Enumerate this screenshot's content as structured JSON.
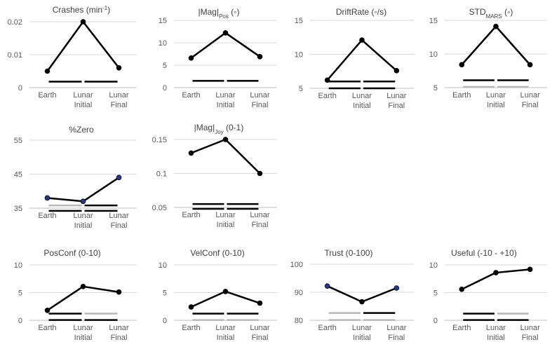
{
  "colors": {
    "series": "#000000",
    "grid": "#d9d9d9",
    "axis": "#bfbfbf",
    "bar_black": "#000000",
    "bar_gray": "#b7b7b7",
    "marker_blue": "#1f3a93"
  },
  "categories": [
    [
      "Earth"
    ],
    [
      "Lunar",
      "Initial"
    ],
    [
      "Lunar",
      "Final"
    ]
  ],
  "chart_data": [
    {
      "type": "line",
      "title": "Crashes (min",
      "title_sup": "-1",
      "title_suffix": ")",
      "ylim": [
        0,
        0.02
      ],
      "yticks": [
        "0",
        "0.01",
        "0.02"
      ],
      "ytick_values": [
        0,
        0.01,
        0.02
      ],
      "values": [
        0.005,
        0.02,
        0.006
      ],
      "bars": [
        {
          "y": 0.0018,
          "segments": [
            "black",
            "black"
          ]
        }
      ]
    },
    {
      "type": "line",
      "title": "|Mag|",
      "title_sub": "Pos",
      "title_suffix": " (◦)",
      "ylim": [
        0,
        15
      ],
      "yticks": [
        "0",
        "5",
        "10",
        "15"
      ],
      "ytick_values": [
        0,
        5,
        10,
        15
      ],
      "values": [
        6.6,
        12.2,
        6.9
      ],
      "bars": [
        {
          "y": 1.5,
          "segments": [
            "black",
            "black"
          ]
        }
      ]
    },
    {
      "type": "line",
      "title": "DriftRate (◦/s)",
      "title_sub": "",
      "title_suffix": "",
      "ylim": [
        5,
        15
      ],
      "yticks": [
        "5",
        "10",
        "15"
      ],
      "ytick_values": [
        5,
        10,
        15
      ],
      "values": [
        6.2,
        12.1,
        7.6
      ],
      "bars": [
        {
          "y": 6.0,
          "segments": [
            "black",
            "black"
          ]
        },
        {
          "y": 5.0,
          "segments": [
            "black",
            "black"
          ]
        }
      ]
    },
    {
      "type": "line",
      "title": "STD",
      "title_sub": "MARS",
      "title_suffix": " (◦)",
      "ylim": [
        5,
        15
      ],
      "yticks": [
        "5",
        "10",
        "15"
      ],
      "ytick_values": [
        5,
        10,
        15
      ],
      "values": [
        8.4,
        14.1,
        8.4
      ],
      "bars": [
        {
          "y": 6.1,
          "segments": [
            "black",
            "black"
          ]
        },
        {
          "y": 5.1,
          "segments": [
            "gray",
            "gray"
          ]
        }
      ]
    },
    {
      "type": "line",
      "title": "%Zero",
      "title_sub": "",
      "title_suffix": "",
      "ylim": [
        35,
        55
      ],
      "yticks": [
        "35",
        "45",
        "55"
      ],
      "ytick_values": [
        35,
        45,
        55
      ],
      "values": [
        38,
        37,
        44
      ],
      "marker_colors": [
        "blue",
        "blue",
        "blue"
      ],
      "bars": [
        {
          "y": 35.8,
          "segments": [
            "gray",
            "black"
          ]
        },
        {
          "y": 34.2,
          "segments": [
            "black",
            "black"
          ]
        }
      ]
    },
    {
      "type": "line",
      "title": "|Mag|",
      "title_sub": "Joy",
      "title_suffix": " (0-1)",
      "ylim": [
        0.05,
        0.15
      ],
      "yticks": [
        "0.05",
        "0.1",
        "0.15"
      ],
      "ytick_values": [
        0.05,
        0.1,
        0.15
      ],
      "values": [
        0.13,
        0.15,
        0.1
      ],
      "bars": [
        {
          "y": 0.055,
          "segments": [
            "black",
            "black"
          ]
        },
        {
          "y": 0.048,
          "segments": [
            "black",
            "black"
          ]
        }
      ]
    },
    {
      "type": "line",
      "title": "PosConf (0-10)",
      "title_sub": "",
      "title_suffix": "",
      "ylim": [
        0,
        10
      ],
      "yticks": [
        "0",
        "5",
        "10"
      ],
      "ytick_values": [
        0,
        5,
        10
      ],
      "values": [
        1.8,
        6.1,
        5.1
      ],
      "bars": [
        {
          "y": 1.2,
          "segments": [
            "black",
            "gray"
          ]
        },
        {
          "y": 0.05,
          "segments": [
            "black",
            "black"
          ]
        }
      ]
    },
    {
      "type": "line",
      "title": "VelConf (0-10)",
      "title_sub": "",
      "title_suffix": "",
      "ylim": [
        0,
        10
      ],
      "yticks": [
        "0",
        "5",
        "10"
      ],
      "ytick_values": [
        0,
        5,
        10
      ],
      "values": [
        2.4,
        5.2,
        3.1
      ],
      "bars": [
        {
          "y": 1.2,
          "segments": [
            "black",
            "black"
          ]
        },
        {
          "y": 0.05,
          "segments": [
            "gray",
            "gray"
          ]
        }
      ]
    },
    {
      "type": "line",
      "title": "Trust (0-100)",
      "title_sub": "",
      "title_suffix": "",
      "ylim": [
        80,
        100
      ],
      "yticks": [
        "80",
        "90",
        "100"
      ],
      "ytick_values": [
        80,
        90,
        100
      ],
      "values": [
        92.2,
        86.6,
        91.5
      ],
      "marker_colors": [
        "blue",
        "black",
        "blue"
      ],
      "bars": [
        {
          "y": 82.6,
          "segments": [
            "gray",
            "black"
          ]
        },
        {
          "y": 80.1,
          "segments": [
            "gray",
            "gray"
          ]
        }
      ]
    },
    {
      "type": "line",
      "title": "Useful (-10 - +10)",
      "title_sub": "",
      "title_suffix": "",
      "ylim": [
        0,
        10
      ],
      "yticks": [
        "0",
        "5",
        "10"
      ],
      "ytick_values": [
        0,
        5,
        10
      ],
      "values": [
        5.6,
        8.6,
        9.2
      ],
      "bars": [
        {
          "y": 1.2,
          "segments": [
            "black",
            "gray"
          ]
        },
        {
          "y": 0.05,
          "segments": [
            "black",
            "black"
          ]
        }
      ]
    }
  ]
}
